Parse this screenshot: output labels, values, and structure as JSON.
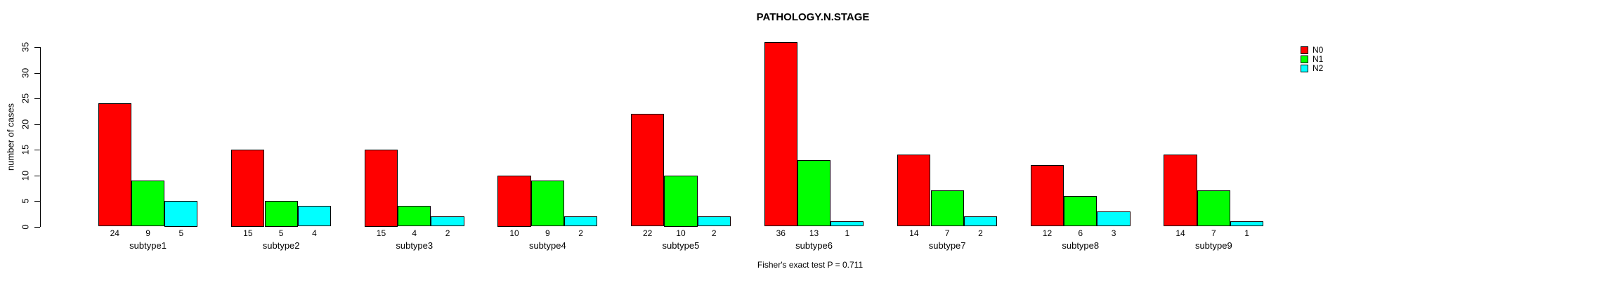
{
  "chart_data": {
    "type": "bar",
    "title": "PATHOLOGY.N.STAGE",
    "ylabel": "number of cases",
    "xlabel": "",
    "annotation": "Fisher's exact test P = 0.711",
    "categories": [
      "subtype1",
      "subtype2",
      "subtype3",
      "subtype4",
      "subtype5",
      "subtype6",
      "subtype7",
      "subtype8",
      "subtype9"
    ],
    "series": [
      {
        "name": "N0",
        "color": "#ff0000",
        "values": [
          24,
          15,
          15,
          10,
          22,
          36,
          14,
          12,
          14
        ]
      },
      {
        "name": "N1",
        "color": "#00ff00",
        "values": [
          9,
          5,
          4,
          9,
          10,
          13,
          7,
          6,
          7
        ]
      },
      {
        "name": "N2",
        "color": "#00ffff",
        "values": [
          5,
          4,
          2,
          2,
          2,
          1,
          2,
          3,
          1
        ]
      }
    ],
    "bar_value_labels": true,
    "yticks": [
      0,
      5,
      10,
      15,
      20,
      25,
      30,
      35
    ],
    "ylim": [
      0,
      35
    ],
    "grid": false,
    "legend_position": "right",
    "colors": {
      "background": "#ffffff",
      "axis": "#000000",
      "text": "#000000"
    }
  }
}
